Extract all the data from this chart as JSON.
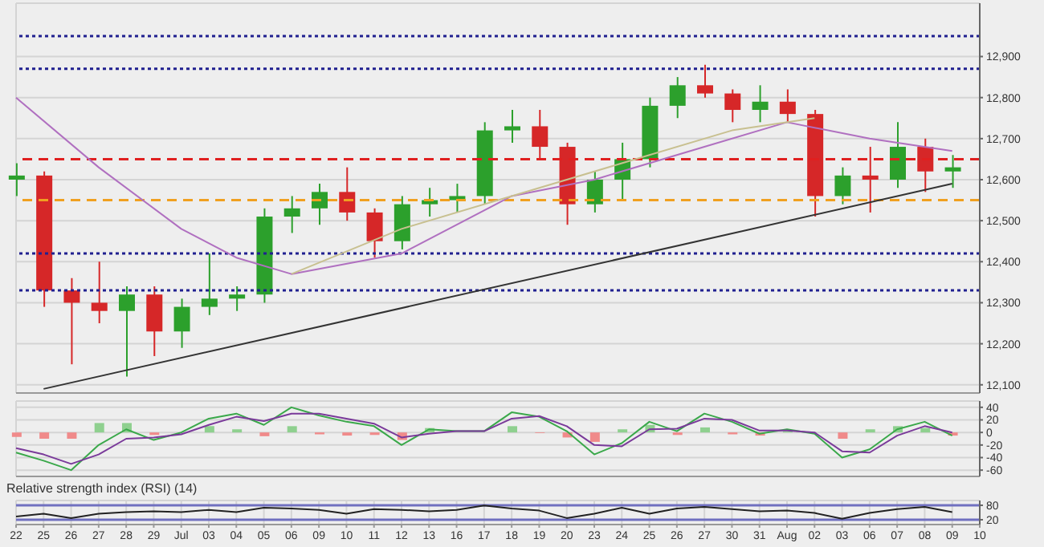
{
  "chart_data": [
    {
      "type": "candlestick",
      "ohlc": [
        [
          12600,
          12640,
          12560,
          12610
        ],
        [
          12610,
          12620,
          12290,
          12330
        ],
        [
          12330,
          12360,
          12150,
          12300
        ],
        [
          12300,
          12400,
          12250,
          12280
        ],
        [
          12280,
          12340,
          12120,
          12320
        ],
        [
          12320,
          12340,
          12170,
          12230
        ],
        [
          12230,
          12310,
          12190,
          12290
        ],
        [
          12290,
          12420,
          12270,
          12310
        ],
        [
          12310,
          12340,
          12280,
          12320
        ],
        [
          12320,
          12530,
          12300,
          12510
        ],
        [
          12510,
          12560,
          12470,
          12530
        ],
        [
          12530,
          12590,
          12490,
          12570
        ],
        [
          12570,
          12630,
          12500,
          12520
        ],
        [
          12520,
          12530,
          12410,
          12450
        ],
        [
          12450,
          12560,
          12430,
          12540
        ],
        [
          12540,
          12580,
          12510,
          12550
        ],
        [
          12550,
          12590,
          12520,
          12560
        ],
        [
          12560,
          12740,
          12540,
          12720
        ],
        [
          12720,
          12770,
          12690,
          12730
        ],
        [
          12730,
          12770,
          12650,
          12680
        ],
        [
          12680,
          12690,
          12490,
          12540
        ],
        [
          12540,
          12620,
          12520,
          12600
        ],
        [
          12600,
          12690,
          12550,
          12650
        ],
        [
          12650,
          12800,
          12630,
          12780
        ],
        [
          12780,
          12850,
          12750,
          12830
        ],
        [
          12830,
          12880,
          12800,
          12810
        ],
        [
          12810,
          12820,
          12740,
          12770
        ],
        [
          12770,
          12830,
          12740,
          12790
        ],
        [
          12790,
          12820,
          12740,
          12760
        ],
        [
          12760,
          12770,
          12510,
          12560
        ],
        [
          12560,
          12630,
          12540,
          12610
        ],
        [
          12610,
          12680,
          12520,
          12600
        ],
        [
          12600,
          12740,
          12580,
          12680
        ],
        [
          12680,
          12700,
          12570,
          12620
        ],
        [
          12620,
          12660,
          12580,
          12630
        ],
        null
      ],
      "colors": [
        "#2ca02c",
        "#d62728",
        "#d62728",
        "#d62728",
        "#2ca02c",
        "#d62728",
        "#2ca02c",
        "#2ca02c",
        "#2ca02c",
        "#2ca02c",
        "#2ca02c",
        "#2ca02c",
        "#d62728",
        "#d62728",
        "#2ca02c",
        "#2ca02c",
        "#2ca02c",
        "#2ca02c",
        "#2ca02c",
        "#d62728",
        "#d62728",
        "#2ca02c",
        "#2ca02c",
        "#2ca02c",
        "#2ca02c",
        "#d62728",
        "#d62728",
        "#2ca02c",
        "#d62728",
        "#d62728",
        "#2ca02c",
        "#d62728",
        "#2ca02c",
        "#d62728",
        "#2ca02c",
        null
      ],
      "series": [
        {
          "type": "line",
          "color": "#b070c0",
          "values": [
            12800,
            null,
            null,
            12630,
            null,
            null,
            12480,
            null,
            12410,
            null,
            12370,
            null,
            null,
            null,
            12420,
            null,
            null,
            null,
            12560,
            null,
            null,
            12600,
            null,
            null,
            null,
            12680,
            null,
            null,
            12740,
            null,
            null,
            12700,
            null,
            null,
            12670,
            null
          ]
        },
        {
          "type": "line",
          "color": "#c8c090",
          "values": [
            null,
            null,
            null,
            null,
            null,
            null,
            null,
            null,
            null,
            null,
            12370,
            null,
            null,
            null,
            12480,
            null,
            null,
            null,
            12560,
            null,
            null,
            null,
            12640,
            null,
            null,
            null,
            12720,
            null,
            null,
            12750,
            null,
            null,
            null,
            null,
            null,
            null
          ]
        },
        {
          "type": "line",
          "color": "#333333",
          "values": [
            null,
            12090,
            null,
            null,
            null,
            null,
            null,
            null,
            null,
            null,
            null,
            null,
            null,
            null,
            null,
            null,
            null,
            null,
            null,
            null,
            null,
            null,
            null,
            null,
            null,
            null,
            null,
            null,
            null,
            null,
            null,
            null,
            null,
            null,
            12590,
            null
          ]
        }
      ],
      "ylim": [
        12080,
        13030
      ],
      "yticks": [
        {
          "value": 12100,
          "label": "12,100"
        },
        {
          "value": 12200,
          "label": "12,200"
        },
        {
          "value": 12300,
          "label": "12,300"
        },
        {
          "value": 12400,
          "label": "12,400"
        },
        {
          "value": 12500,
          "label": "12,500"
        },
        {
          "value": 12600,
          "label": "12,600"
        },
        {
          "value": 12700,
          "label": "12,700"
        },
        {
          "value": 12800,
          "label": "12,800"
        },
        {
          "value": 12900,
          "label": "12,900"
        }
      ],
      "ref_lines": [
        {
          "axis": "y",
          "value": 12950,
          "color": "#202090",
          "line_style": "dotted"
        },
        {
          "axis": "y",
          "value": 12870,
          "color": "#202090",
          "line_style": "dotted"
        },
        {
          "axis": "y",
          "value": 12650,
          "color": "#e02020",
          "line_style": "dashed"
        },
        {
          "axis": "y",
          "value": 12550,
          "color": "#f0a020",
          "line_style": "dashed"
        },
        {
          "axis": "y",
          "value": 12420,
          "color": "#202090",
          "line_style": "dotted"
        },
        {
          "axis": "y",
          "value": 12330,
          "color": "#202090",
          "line_style": "dotted"
        }
      ],
      "grid": true,
      "tick_labels": "y"
    },
    {
      "type": "line",
      "series": [
        {
          "type": "bar",
          "colors": [
            "#f08a8a",
            "#f08a8a",
            "#f08a8a",
            "#8fd08f",
            "#8fd08f",
            "#f08a8a",
            "#8fd08f",
            "#8fd08f",
            "#8fd08f",
            "#f08a8a",
            "#8fd08f",
            "#f08a8a",
            "#f08a8a",
            "#f08a8a",
            "#f08a8a",
            "#8fd08f",
            "#8fd08f",
            "#8fd08f",
            "#8fd08f",
            "#f08a8a",
            "#f08a8a",
            "#f08a8a",
            "#8fd08f",
            "#8fd08f",
            "#f08a8a",
            "#8fd08f",
            "#f08a8a",
            "#f08a8a",
            "#8fd08f",
            "#f08a8a",
            "#f08a8a",
            "#8fd08f",
            "#8fd08f",
            "#8fd08f",
            "#f08a8a",
            null
          ],
          "values": [
            -7,
            -10,
            -10,
            15,
            15,
            -4,
            null,
            10,
            5,
            -6,
            10,
            -3,
            -5,
            -4,
            -12,
            7,
            0,
            0,
            10,
            -1,
            -8,
            -15,
            5,
            12,
            -4,
            8,
            -3,
            -5,
            2,
            null,
            -10,
            5,
            10,
            7,
            -5,
            null
          ]
        },
        {
          "type": "line",
          "color": "#3aa84a",
          "values": [
            -32,
            -45,
            -60,
            -20,
            5,
            -12,
            0,
            22,
            30,
            12,
            40,
            27,
            17,
            10,
            -20,
            5,
            2,
            2,
            32,
            25,
            2,
            -35,
            -17,
            17,
            2,
            30,
            17,
            -2,
            5,
            -2,
            -40,
            -27,
            5,
            17,
            -5,
            null
          ]
        },
        {
          "type": "line",
          "color": "#7a3a9a",
          "values": [
            -25,
            -35,
            -50,
            -35,
            -10,
            -8,
            -3,
            12,
            25,
            18,
            30,
            30,
            22,
            14,
            -8,
            -2,
            2,
            2,
            22,
            26,
            10,
            -20,
            -22,
            5,
            6,
            22,
            20,
            3,
            3,
            0,
            -30,
            -32,
            -5,
            10,
            0,
            null
          ]
        }
      ],
      "ylim": [
        -70,
        50
      ],
      "yticks": [
        -60,
        -40,
        -20,
        0,
        20,
        40
      ],
      "grid": true,
      "tick_labels": "y"
    },
    {
      "type": "line",
      "title": "Relative strength index (RSI) (14)",
      "categories": [
        "22",
        "25",
        "26",
        "27",
        "28",
        "29",
        "Jul",
        "03",
        "04",
        "05",
        "06",
        "09",
        "10",
        "11",
        "12",
        "13",
        "16",
        "17",
        "18",
        "19",
        "20",
        "23",
        "24",
        "25",
        "26",
        "27",
        "30",
        "31",
        "Aug",
        "02",
        "03",
        "06",
        "07",
        "08",
        "09",
        "10"
      ],
      "series": [
        {
          "color": "#222222",
          "values": [
            33,
            45,
            27,
            45,
            52,
            55,
            52,
            61,
            52,
            70,
            67,
            61,
            45,
            64,
            61,
            55,
            61,
            79,
            67,
            58,
            27,
            45,
            70,
            45,
            67,
            73,
            64,
            55,
            58,
            48,
            24,
            48,
            64,
            73,
            52,
            null
          ]
        }
      ],
      "ylim": [
        0,
        100
      ],
      "yticks": [
        20,
        80
      ],
      "ref_lines": [
        {
          "axis": "y",
          "value": 80,
          "color": "#7070c0",
          "line_style": "solid"
        },
        {
          "axis": "y",
          "value": 20,
          "color": "#7070c0",
          "line_style": "solid"
        }
      ],
      "grid": true
    }
  ]
}
